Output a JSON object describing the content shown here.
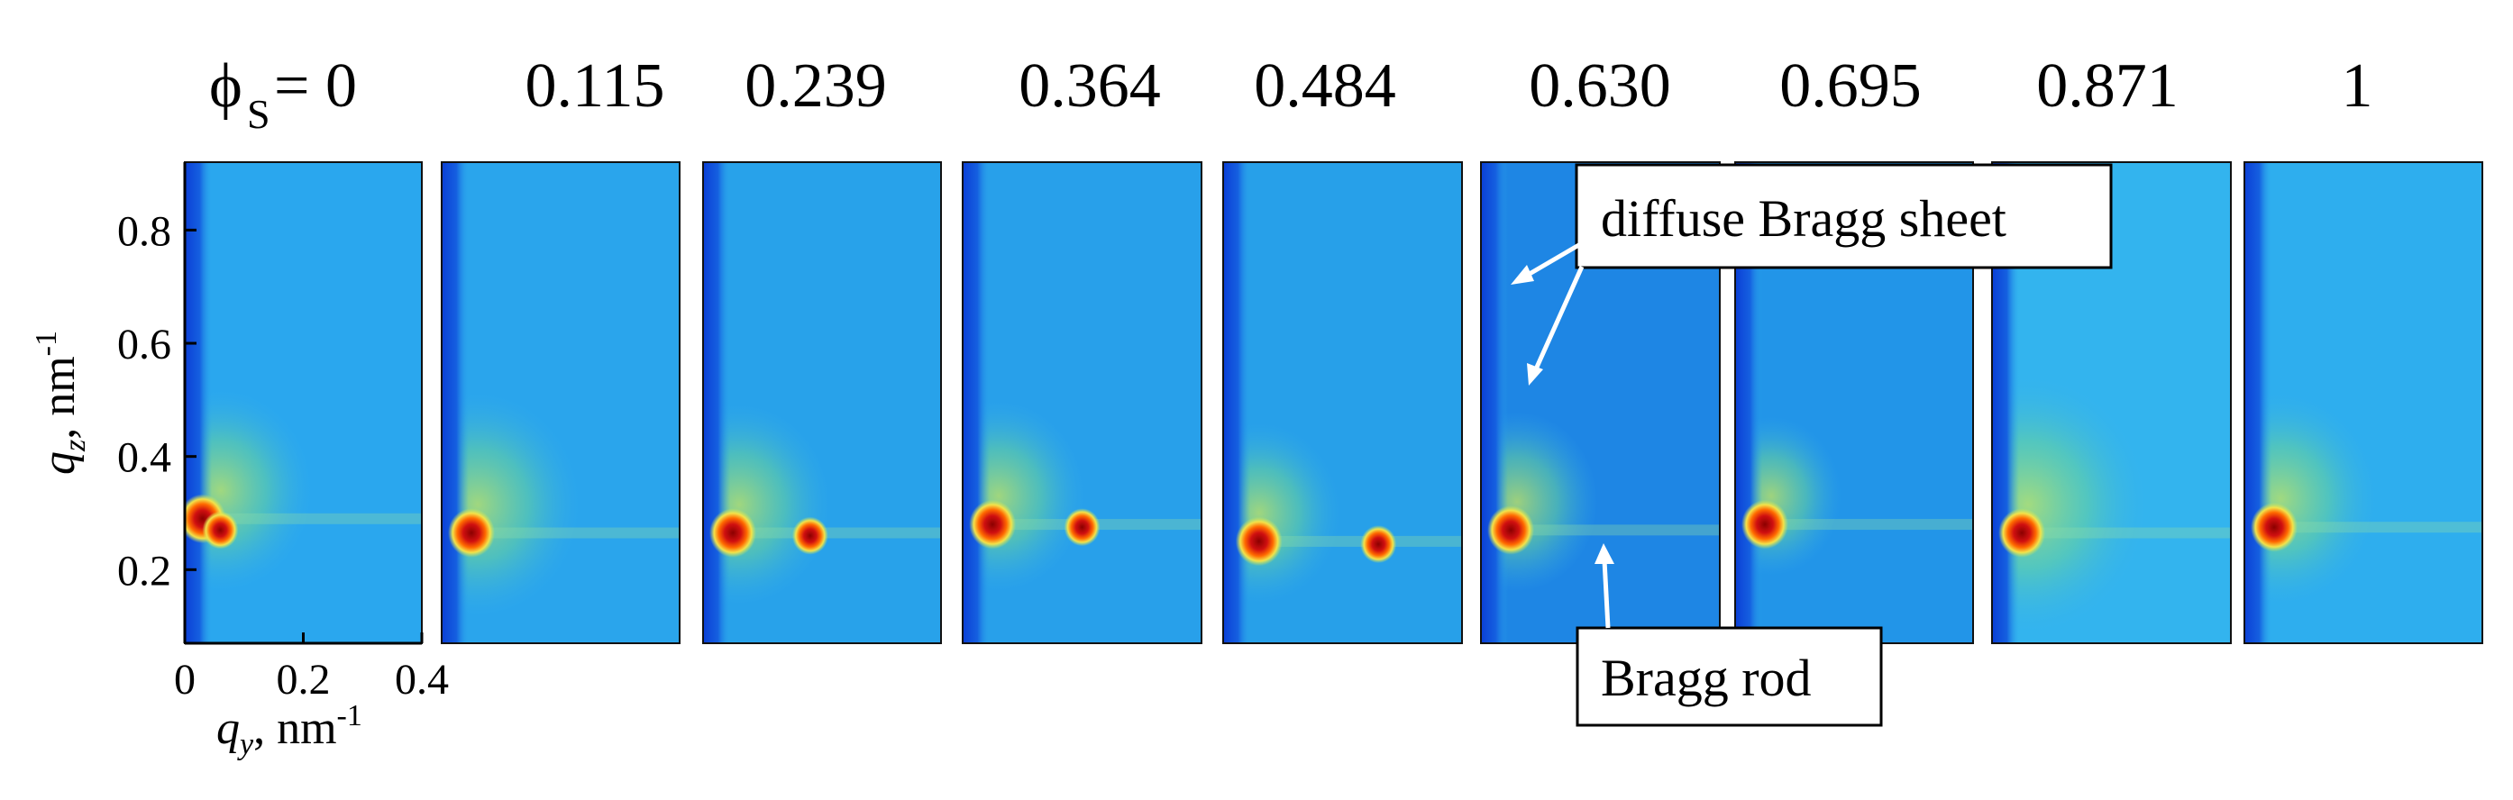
{
  "header": {
    "phi_symbol": "ϕ",
    "phi_subscript": "S",
    "phi_equals": " = 0"
  },
  "panels": [
    {
      "label": "ϕS = 0",
      "phi": 0,
      "spots": [
        {
          "qy": 0.03,
          "qz": 0.29
        },
        {
          "qy": 0.06,
          "qz": 0.27
        }
      ],
      "tone": "#2aa7ee",
      "glow": 0.6
    },
    {
      "label": "0.115",
      "phi": 0.115,
      "spots": [
        {
          "qy": 0.05,
          "qz": 0.265
        }
      ],
      "tone": "#2aa5ec",
      "glow": 0.7
    },
    {
      "label": "0.239",
      "phi": 0.239,
      "spots": [
        {
          "qy": 0.05,
          "qz": 0.265
        },
        {
          "qy": 0.18,
          "qz": 0.26
        }
      ],
      "tone": "#28a2ea",
      "glow": 0.6
    },
    {
      "label": "0.364",
      "phi": 0.364,
      "spots": [
        {
          "qy": 0.05,
          "qz": 0.28
        },
        {
          "qy": 0.2,
          "qz": 0.275
        }
      ],
      "tone": "#28a0ea",
      "glow": 0.55
    },
    {
      "label": "0.484",
      "phi": 0.484,
      "spots": [
        {
          "qy": 0.06,
          "qz": 0.25
        },
        {
          "qy": 0.26,
          "qz": 0.245
        }
      ],
      "tone": "#27a0e9",
      "glow": 0.5
    },
    {
      "label": "0.630",
      "phi": 0.63,
      "spots": [
        {
          "qy": 0.05,
          "qz": 0.27
        }
      ],
      "tone": "#1e86e4",
      "glow": 0.5
    },
    {
      "label": "0.695",
      "phi": 0.695,
      "spots": [
        {
          "qy": 0.05,
          "qz": 0.28
        }
      ],
      "tone": "#2295e8",
      "glow": 0.4
    },
    {
      "label": "0.871",
      "phi": 0.871,
      "spots": [
        {
          "qy": 0.05,
          "qz": 0.265
        }
      ],
      "tone": "#33b4ee",
      "glow": 0.85
    },
    {
      "label": "1",
      "phi": 1,
      "spots": [
        {
          "qy": 0.05,
          "qz": 0.275
        }
      ],
      "tone": "#2eaeee",
      "glow": 0.65
    }
  ],
  "axes": {
    "y_label_q": "q",
    "y_label_sub": "z",
    "y_label_unit": ", nm",
    "y_label_exp": "-1",
    "y_ticks": [
      "0.2",
      "0.4",
      "0.6",
      "0.8"
    ],
    "y_tick_values": [
      0.2,
      0.4,
      0.6,
      0.8
    ],
    "x_label_q": "q",
    "x_label_sub": "y",
    "x_label_unit": ", nm",
    "x_label_exp": "-1",
    "x_ticks": [
      "0",
      "0.2",
      "0.4"
    ],
    "x_tick_values": [
      0,
      0.2,
      0.4
    ],
    "qz_range": [
      0.07,
      0.92
    ],
    "qy_range": [
      0,
      0.4
    ]
  },
  "annotations": {
    "diffuse_label": "diffuse Bragg sheet",
    "rod_label": "Bragg rod"
  },
  "colors": {
    "background_blue": "#2aa5ec",
    "edge_blue": "#0b3fd6",
    "hot_red": "#8b0000",
    "hot_orange": "#ff6a00",
    "glow_yellow": "#c8e85a"
  }
}
